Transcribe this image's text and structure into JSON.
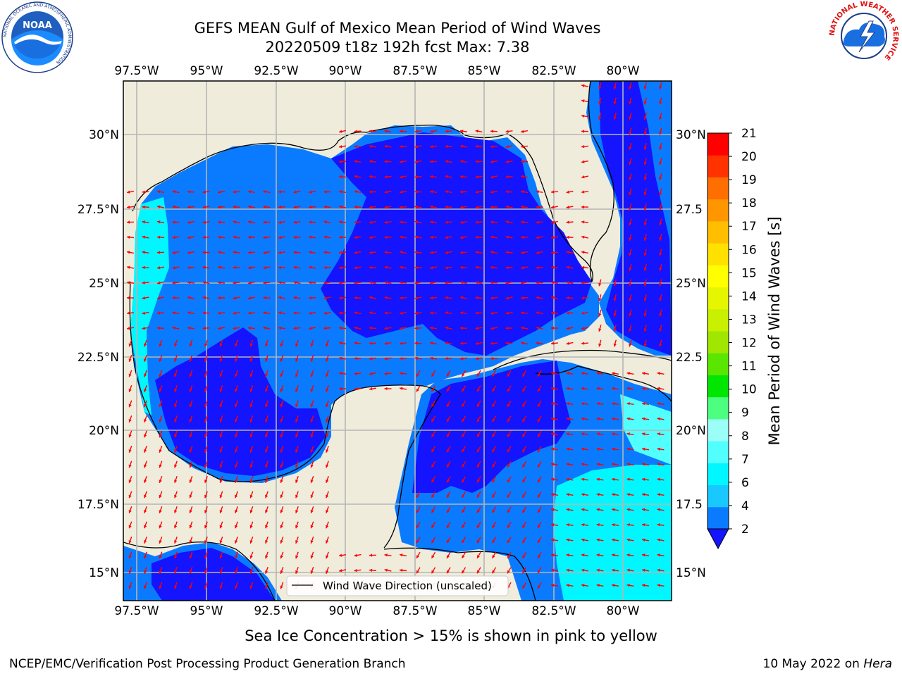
{
  "title": {
    "line1": "GEFS MEAN Gulf of Mexico Mean Period of Wind Waves",
    "line2": "20220509 t18z 192h fcst   Max: 7.38"
  },
  "map": {
    "lon_ticks": [
      "97.5°W",
      "95°W",
      "92.5°W",
      "90°W",
      "87.5°W",
      "85°W",
      "82.5°W",
      "80°W"
    ],
    "lat_ticks_left": [
      "30°N",
      "27.5°N",
      "25°N",
      "22.5°N",
      "20°N",
      "17.5°N",
      "15°N"
    ],
    "lat_ticks_right": [
      "30°N",
      "27.5",
      "25°N",
      "22.5",
      "20°N",
      "17.5",
      "15°N"
    ],
    "extent": {
      "lon_min": -98.0,
      "lon_max": -78.2,
      "lat_min": 14.0,
      "lat_max": 31.6
    },
    "gridlines": true,
    "land_color": "#efecdc",
    "vector_color": "#ff0000"
  },
  "legend": {
    "label": "Wind Wave Direction (unscaled)"
  },
  "colorbar": {
    "label": "Mean Period of Wind Waves [s]",
    "ticks": [
      "2",
      "4",
      "6",
      "7",
      "8",
      "9",
      "10",
      "11",
      "12",
      "13",
      "14",
      "15",
      "16",
      "17",
      "18",
      "19",
      "20",
      "21"
    ],
    "colors": [
      "#0a7bff",
      "#19c8ff",
      "#00f7ff",
      "#52ffff",
      "#9bfff7",
      "#4dff80",
      "#00e600",
      "#5ae600",
      "#a0e600",
      "#c8f000",
      "#e6f500",
      "#ffff00",
      "#ffe100",
      "#ffbe00",
      "#ff9600",
      "#ff6e00",
      "#ff3200",
      "#ff0000"
    ],
    "extend_color": "#1414ff"
  },
  "caption": "Sea Ice Concentration > 15% is shown in pink to yellow",
  "footer": {
    "left": "NCEP/EMC/Verification Post Processing Product Generation Branch",
    "right_prefix": "10 May 2022 on ",
    "right_host": "Hera"
  },
  "logos": {
    "noaa": "NOAA",
    "nws_ring": "NATIONAL WEATHER SERVICE",
    "noaa_ring": "NATIONAL OCEANIC AND ATMOSPHERIC ADMINISTRATION"
  }
}
